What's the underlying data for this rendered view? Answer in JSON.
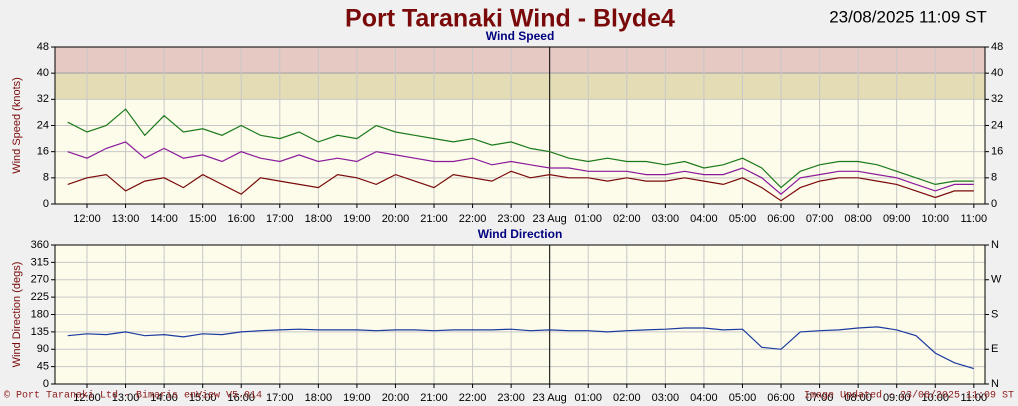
{
  "header": {
    "title": "Port Taranaki Wind - Blyde4",
    "timestamp": "23/08/2025 11:09 ST"
  },
  "footer": {
    "left": "© Port Taranaki Ltd - Bimaris enView V5.014",
    "right": "Image Updated - 23/08/2025 11:09 ST"
  },
  "chart_data": [
    {
      "type": "line",
      "title": "Wind Speed",
      "ylabel": "Wind Speed (knots)",
      "xlim": [
        11.17,
        35.29
      ],
      "xticks": [
        {
          "value": 12,
          "label": "12:00"
        },
        {
          "value": 13,
          "label": "13:00"
        },
        {
          "value": 14,
          "label": "14:00"
        },
        {
          "value": 15,
          "label": "15:00"
        },
        {
          "value": 16,
          "label": "16:00"
        },
        {
          "value": 17,
          "label": "17:00"
        },
        {
          "value": 18,
          "label": "18:00"
        },
        {
          "value": 19,
          "label": "19:00"
        },
        {
          "value": 20,
          "label": "20:00"
        },
        {
          "value": 21,
          "label": "21:00"
        },
        {
          "value": 22,
          "label": "22:00"
        },
        {
          "value": 23,
          "label": "23:00"
        },
        {
          "value": 24,
          "label": "23 Aug"
        },
        {
          "value": 25,
          "label": "01:00"
        },
        {
          "value": 26,
          "label": "02:00"
        },
        {
          "value": 27,
          "label": "03:00"
        },
        {
          "value": 28,
          "label": "04:00"
        },
        {
          "value": 29,
          "label": "05:00"
        },
        {
          "value": 30,
          "label": "06:00"
        },
        {
          "value": 31,
          "label": "07:00"
        },
        {
          "value": 32,
          "label": "08:00"
        },
        {
          "value": 33,
          "label": "09:00"
        },
        {
          "value": 34,
          "label": "10:00"
        },
        {
          "value": 35,
          "label": "11:00"
        }
      ],
      "ylim": [
        0,
        48
      ],
      "yticks": [
        0,
        8,
        16,
        24,
        32,
        40,
        48
      ],
      "y2lim": [
        0,
        48
      ],
      "y2ticks": [
        0,
        8,
        16,
        24,
        32,
        40,
        48
      ],
      "grid": true,
      "bands": [
        {
          "from": 32,
          "to": 40,
          "color": "#e3dcb4"
        },
        {
          "from": 40,
          "to": 48,
          "color": "#e6c9c3"
        }
      ],
      "x": [
        11.5,
        12,
        12.5,
        13,
        13.5,
        14,
        14.5,
        15,
        15.5,
        16,
        16.5,
        17,
        17.5,
        18,
        18.5,
        19,
        19.5,
        20,
        20.5,
        21,
        21.5,
        22,
        22.5,
        23,
        23.5,
        24,
        24.5,
        25,
        25.5,
        26,
        26.5,
        27,
        27.5,
        28,
        28.5,
        29,
        29.5,
        30,
        30.5,
        31,
        31.5,
        32,
        32.5,
        33,
        33.5,
        34,
        34.5,
        35
      ],
      "series": [
        {
          "color": "#1a7a1a",
          "values": [
            25,
            22,
            24,
            29,
            21,
            27,
            22,
            23,
            21,
            24,
            21,
            20,
            22,
            19,
            21,
            20,
            24,
            22,
            21,
            20,
            19,
            20,
            18,
            19,
            17,
            16,
            14,
            13,
            14,
            13,
            13,
            12,
            13,
            11,
            12,
            14,
            11,
            5,
            10,
            12,
            13,
            13,
            12,
            10,
            8,
            6,
            7,
            7
          ]
        },
        {
          "color": "#8a1a9a",
          "values": [
            16,
            14,
            17,
            19,
            14,
            17,
            14,
            15,
            13,
            16,
            14,
            13,
            15,
            13,
            14,
            13,
            16,
            15,
            14,
            13,
            13,
            14,
            12,
            13,
            12,
            11,
            11,
            10,
            10,
            10,
            9,
            9,
            10,
            9,
            9,
            11,
            8,
            3,
            8,
            9,
            10,
            10,
            9,
            8,
            6,
            4,
            6,
            6
          ]
        },
        {
          "color": "#7a0a0a",
          "values": [
            6,
            8,
            9,
            4,
            7,
            8,
            5,
            9,
            6,
            3,
            8,
            7,
            6,
            5,
            9,
            8,
            6,
            9,
            7,
            5,
            9,
            8,
            7,
            10,
            8,
            9,
            8,
            8,
            7,
            8,
            7,
            7,
            8,
            7,
            6,
            8,
            5,
            1,
            5,
            7,
            8,
            8,
            7,
            6,
            4,
            2,
            4,
            4
          ]
        }
      ]
    },
    {
      "type": "line",
      "title": "Wind Direction",
      "ylabel": "Wind Direction (degs)",
      "xlim": [
        11.17,
        35.29
      ],
      "xticks": [
        {
          "value": 12,
          "label": "12:00"
        },
        {
          "value": 13,
          "label": "13:00"
        },
        {
          "value": 14,
          "label": "14:00"
        },
        {
          "value": 15,
          "label": "15:00"
        },
        {
          "value": 16,
          "label": "16:00"
        },
        {
          "value": 17,
          "label": "17:00"
        },
        {
          "value": 18,
          "label": "18:00"
        },
        {
          "value": 19,
          "label": "19:00"
        },
        {
          "value": 20,
          "label": "20:00"
        },
        {
          "value": 21,
          "label": "21:00"
        },
        {
          "value": 22,
          "label": "22:00"
        },
        {
          "value": 23,
          "label": "23:00"
        },
        {
          "value": 24,
          "label": "23 Aug"
        },
        {
          "value": 25,
          "label": "01:00"
        },
        {
          "value": 26,
          "label": "02:00"
        },
        {
          "value": 27,
          "label": "03:00"
        },
        {
          "value": 28,
          "label": "04:00"
        },
        {
          "value": 29,
          "label": "05:00"
        },
        {
          "value": 30,
          "label": "06:00"
        },
        {
          "value": 31,
          "label": "07:00"
        },
        {
          "value": 32,
          "label": "08:00"
        },
        {
          "value": 33,
          "label": "09:00"
        },
        {
          "value": 34,
          "label": "10:00"
        },
        {
          "value": 35,
          "label": "11:00"
        }
      ],
      "ylim": [
        0,
        360
      ],
      "yticks": [
        0,
        45,
        90,
        135,
        180,
        225,
        270,
        315,
        360
      ],
      "y2lim": [
        0,
        360
      ],
      "y2ticks": [
        {
          "value": 0,
          "label": "N"
        },
        {
          "value": 90,
          "label": "E"
        },
        {
          "value": 180,
          "label": "S"
        },
        {
          "value": 270,
          "label": "W"
        },
        {
          "value": 360,
          "label": "N"
        }
      ],
      "grid": true,
      "x": [
        11.5,
        12,
        12.5,
        13,
        13.5,
        14,
        14.5,
        15,
        15.5,
        16,
        16.5,
        17,
        17.5,
        18,
        18.5,
        19,
        19.5,
        20,
        20.5,
        21,
        21.5,
        22,
        22.5,
        23,
        23.5,
        24,
        24.5,
        25,
        25.5,
        26,
        26.5,
        27,
        27.5,
        28,
        28.5,
        29,
        29.5,
        30,
        30.5,
        31,
        31.5,
        32,
        32.5,
        33,
        33.5,
        34,
        34.5,
        35
      ],
      "series": [
        {
          "color": "#1a3aa0",
          "values": [
            125,
            130,
            128,
            135,
            125,
            128,
            122,
            130,
            128,
            135,
            138,
            140,
            142,
            140,
            140,
            140,
            138,
            140,
            140,
            138,
            140,
            140,
            140,
            142,
            138,
            140,
            138,
            138,
            135,
            138,
            140,
            142,
            145,
            145,
            140,
            142,
            95,
            90,
            135,
            138,
            140,
            145,
            148,
            140,
            125,
            80,
            55,
            40
          ]
        }
      ]
    }
  ]
}
